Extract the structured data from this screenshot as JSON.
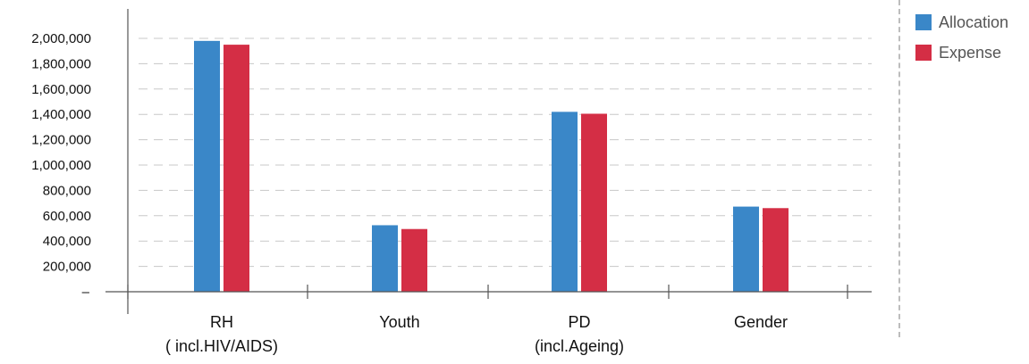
{
  "chart_data": {
    "type": "bar",
    "categories": [
      [
        "RH",
        "( incl.HIV/AIDS)"
      ],
      [
        "Youth"
      ],
      [
        "PD",
        "(incl.Ageing)"
      ],
      [
        "Gender"
      ]
    ],
    "series": [
      {
        "name": "Allocation",
        "color": "#3a87c8",
        "values": [
          1980000,
          525000,
          1420000,
          672000
        ]
      },
      {
        "name": "Expense",
        "color": "#d42e45",
        "values": [
          1950000,
          495000,
          1405000,
          660000
        ]
      }
    ],
    "ylim": [
      0,
      2000000
    ],
    "yticks": [
      {
        "value": 0,
        "label": "–"
      },
      {
        "value": 200000,
        "label": "200,000"
      },
      {
        "value": 400000,
        "label": "400,000"
      },
      {
        "value": 600000,
        "label": "600,000"
      },
      {
        "value": 800000,
        "label": "800,000"
      },
      {
        "value": 1000000,
        "label": "1,000,000"
      },
      {
        "value": 1200000,
        "label": "1,200,000"
      },
      {
        "value": 1400000,
        "label": "1,400,000"
      },
      {
        "value": 1600000,
        "label": "1,600,000"
      },
      {
        "value": 1800000,
        "label": "1,800,000"
      },
      {
        "value": 2000000,
        "label": "2,000,000"
      }
    ],
    "grid": true,
    "legend_position": "top-right",
    "title": "",
    "xlabel": "",
    "ylabel": ""
  }
}
